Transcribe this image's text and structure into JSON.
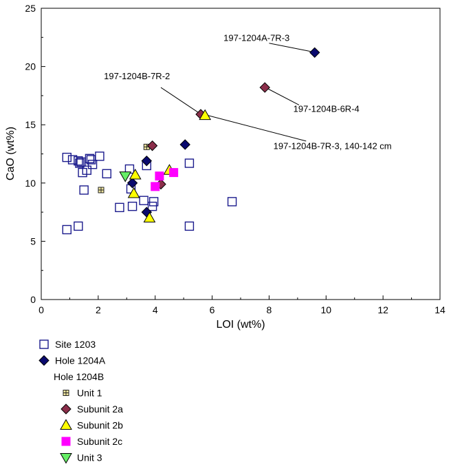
{
  "chart_data": {
    "type": "scatter",
    "xlabel": "LOI (wt%)",
    "ylabel": "CaO (wt%)",
    "xlim": [
      0,
      14
    ],
    "ylim": [
      0,
      25
    ],
    "xticks": [
      0,
      2,
      4,
      6,
      8,
      10,
      12,
      14
    ],
    "yticks": [
      0,
      5,
      10,
      15,
      20,
      25
    ],
    "grid": false,
    "legend_placement": "below",
    "legend_subheading": "Hole 1204B",
    "series": [
      {
        "name": "Site 1203",
        "marker": "square-open",
        "color": "#1a1a8c",
        "points": [
          [
            0.9,
            12.2
          ],
          [
            1.1,
            12.0
          ],
          [
            1.3,
            11.9
          ],
          [
            1.35,
            11.7
          ],
          [
            1.4,
            11.8
          ],
          [
            1.45,
            10.9
          ],
          [
            1.6,
            11.1
          ],
          [
            1.7,
            12.1
          ],
          [
            1.75,
            12.0
          ],
          [
            1.8,
            11.6
          ],
          [
            2.05,
            12.3
          ],
          [
            2.3,
            10.8
          ],
          [
            1.5,
            9.4
          ],
          [
            0.9,
            6.0
          ],
          [
            1.3,
            6.3
          ],
          [
            2.75,
            7.9
          ],
          [
            3.1,
            11.2
          ],
          [
            3.15,
            9.5
          ],
          [
            3.2,
            8.0
          ],
          [
            3.6,
            8.5
          ],
          [
            3.9,
            8.0
          ],
          [
            3.95,
            8.4
          ],
          [
            3.7,
            11.5
          ],
          [
            5.2,
            11.7
          ],
          [
            5.2,
            6.3
          ],
          [
            6.7,
            8.4
          ]
        ]
      },
      {
        "name": "Hole 1204A",
        "marker": "diamond",
        "color": "#0a0a6e",
        "points": [
          [
            3.2,
            10.0
          ],
          [
            3.7,
            11.9
          ],
          [
            3.7,
            7.5
          ],
          [
            5.05,
            13.3
          ],
          [
            9.6,
            21.2
          ]
        ]
      },
      {
        "name": "Unit 1",
        "marker": "square-plus",
        "color": "#f0e6a0",
        "points": [
          [
            2.1,
            9.4
          ],
          [
            3.7,
            13.1
          ]
        ]
      },
      {
        "name": "Subunit 2a",
        "marker": "diamond",
        "color": "#8b2e4a",
        "points": [
          [
            3.9,
            13.2
          ],
          [
            4.2,
            9.9
          ],
          [
            5.6,
            15.9
          ],
          [
            7.85,
            18.2
          ]
        ]
      },
      {
        "name": "Subunit 2b",
        "marker": "triangle-up",
        "color": "#ffff00",
        "points": [
          [
            3.3,
            10.7
          ],
          [
            3.25,
            9.1
          ],
          [
            3.8,
            7.0
          ],
          [
            4.5,
            11.1
          ],
          [
            5.75,
            15.8
          ]
        ]
      },
      {
        "name": "Subunit 2c",
        "marker": "square",
        "color": "#ff00ff",
        "points": [
          [
            4.15,
            10.6
          ],
          [
            4.0,
            9.7
          ],
          [
            4.65,
            10.9
          ]
        ]
      },
      {
        "name": "Unit 3",
        "marker": "triangle-down",
        "color": "#66ee66",
        "points": [
          [
            2.95,
            10.6
          ]
        ]
      }
    ],
    "annotations": [
      {
        "text": "197-1204A-7R-3",
        "text_at": [
          6.4,
          22.2
        ],
        "line_from": [
          8.0,
          22.0
        ],
        "line_to": [
          9.45,
          21.3
        ],
        "anchor": "start"
      },
      {
        "text": "197-1204B-7R-2",
        "text_at": [
          2.2,
          18.9
        ],
        "line_from": [
          4.2,
          18.2
        ],
        "line_to": [
          5.55,
          16.0
        ],
        "anchor": "start"
      },
      {
        "text": "197-1204B-6R-4",
        "text_at": [
          8.85,
          16.1
        ],
        "line_from": [
          9.05,
          16.7
        ],
        "line_to": [
          7.95,
          18.1
        ],
        "anchor": "start"
      },
      {
        "text": "197-1204B-7R-3, 140-142 cm",
        "text_at": [
          8.15,
          12.9
        ],
        "line_from": [
          9.3,
          13.6
        ],
        "line_to": [
          5.85,
          15.8
        ],
        "anchor": "start"
      }
    ]
  }
}
